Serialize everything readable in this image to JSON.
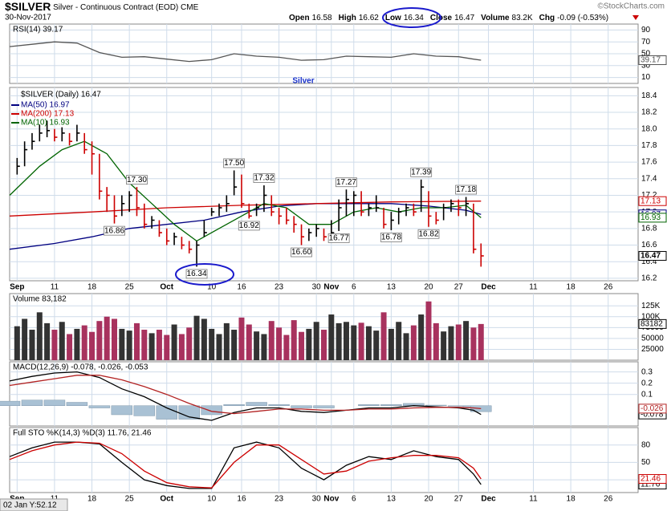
{
  "header": {
    "symbol": "$SILVER",
    "name": "Silver - Continuous Contract (EOD)",
    "exchange": "CME",
    "date": "30-Nov-2017",
    "quote": [
      {
        "label": "Open",
        "value": "16.58"
      },
      {
        "label": "High",
        "value": "16.62"
      },
      {
        "label": "Low",
        "value": "16.34"
      },
      {
        "label": "Close",
        "value": "16.47"
      },
      {
        "label": "Volume",
        "value": "83.2K"
      },
      {
        "label": "Chg",
        "value": "-0.09 (-0.53%)"
      }
    ],
    "credit": "©StockCharts.com",
    "title": "Silver",
    "footer": "02 Jan Y:52.12"
  },
  "chart_data": [
    {
      "type": "line",
      "label": "RSI(14) 39.17",
      "ylim": [
        0,
        100
      ],
      "yticks": [
        90,
        70,
        50,
        30,
        10
      ],
      "series": [
        {
          "color": "#555555",
          "x": [
            -1,
            2,
            5,
            8,
            11,
            14,
            17,
            20,
            23,
            26,
            29,
            32,
            35,
            38,
            41,
            44,
            47,
            50,
            53,
            56,
            59,
            61,
            62
          ],
          "values": [
            62,
            66,
            70,
            68,
            52,
            44,
            45,
            41,
            37,
            40,
            50,
            46,
            44,
            39,
            40,
            46,
            45,
            44,
            50,
            46,
            45,
            41,
            39.17
          ]
        }
      ]
    },
    {
      "type": "ohlc",
      "label": "$SILVER (Daily) 16.47",
      "xlim": [
        -1,
        83
      ],
      "xticks": [
        {
          "value": 0,
          "label": "Sep"
        },
        {
          "value": 5,
          "label": "11"
        },
        {
          "value": 10,
          "label": "18"
        },
        {
          "value": 15,
          "label": "25"
        },
        {
          "value": 20,
          "label": "Oct"
        },
        {
          "value": 26,
          "label": "10"
        },
        {
          "value": 30,
          "label": "16"
        },
        {
          "value": 35,
          "label": "23"
        },
        {
          "value": 40,
          "label": "30"
        },
        {
          "value": 42,
          "label": "Nov"
        },
        {
          "value": 45,
          "label": "6"
        },
        {
          "value": 50,
          "label": "13"
        },
        {
          "value": 55,
          "label": "20"
        },
        {
          "value": 59,
          "label": "27"
        },
        {
          "value": 63,
          "label": "Dec"
        },
        {
          "value": 69,
          "label": "11"
        },
        {
          "value": 74,
          "label": "18"
        },
        {
          "value": 79,
          "label": "26"
        }
      ],
      "ylim": [
        16.17,
        18.5
      ],
      "yticks": [
        18.4,
        18.2,
        {
          "value": 18,
          "label": "18.0"
        },
        17.8,
        17.6,
        17.4,
        17.2,
        {
          "value": 17,
          "label": "17.0"
        },
        16.8,
        16.6,
        16.4,
        16.2
      ],
      "up_color": "#000000",
      "down_color": "#cc0000",
      "close": [
        17.55,
        17.75,
        17.85,
        17.95,
        17.98,
        17.9,
        17.95,
        17.85,
        17.95,
        17.75,
        17.7,
        17.25,
        17.2,
        16.95,
        17.1,
        17.2,
        17.05,
        16.85,
        16.9,
        16.75,
        16.65,
        16.7,
        16.6,
        16.55,
        16.6,
        16.75,
        17.0,
        17.05,
        17.1,
        17.3,
        17.1,
        16.95,
        17.05,
        17.2,
        17.0,
        16.95,
        16.9,
        16.85,
        16.7,
        16.75,
        16.8,
        16.7,
        16.75,
        17.05,
        17.15,
        17.2,
        17.0,
        17.05,
        17.05,
        16.85,
        16.9,
        17.0,
        17.05,
        17.0,
        17.3,
        16.95,
        16.9,
        17.05,
        17.1,
        17.05,
        17.1,
        16.55,
        16.47
      ],
      "high": [
        17.65,
        17.85,
        17.95,
        18.05,
        18.1,
        18.0,
        18.02,
        17.95,
        18.05,
        17.95,
        17.85,
        17.7,
        17.3,
        17.2,
        17.2,
        17.25,
        17.3,
        17.1,
        16.95,
        16.9,
        16.8,
        16.75,
        16.7,
        16.65,
        16.65,
        16.9,
        17.05,
        17.1,
        17.2,
        17.5,
        17.45,
        17.1,
        17.1,
        17.32,
        17.2,
        17.05,
        17.05,
        16.95,
        16.85,
        16.8,
        16.85,
        16.8,
        16.9,
        17.15,
        17.27,
        17.25,
        17.25,
        17.1,
        17.2,
        17.05,
        17.0,
        17.05,
        17.1,
        17.1,
        17.39,
        17.25,
        17.0,
        17.1,
        17.15,
        17.15,
        17.18,
        17.1,
        16.62
      ],
      "low": [
        17.45,
        17.55,
        17.75,
        17.85,
        17.9,
        17.85,
        17.85,
        17.8,
        17.85,
        17.7,
        17.45,
        17.15,
        17.0,
        16.86,
        16.95,
        17.0,
        16.95,
        16.8,
        16.8,
        16.7,
        16.6,
        16.6,
        16.55,
        16.5,
        16.34,
        16.7,
        16.95,
        16.95,
        17.0,
        17.2,
        17.05,
        16.92,
        16.95,
        17.0,
        16.95,
        16.85,
        16.85,
        16.75,
        16.6,
        16.65,
        16.7,
        16.65,
        16.68,
        16.77,
        16.95,
        16.95,
        16.95,
        16.95,
        17.0,
        16.8,
        16.78,
        16.85,
        16.95,
        16.95,
        17.0,
        16.82,
        16.85,
        16.9,
        17.0,
        16.95,
        16.95,
        16.5,
        16.34
      ],
      "series": [
        {
          "name": "MA(50) 16.97",
          "color": "#000080",
          "x": [
            -1,
            5,
            10,
            15,
            20,
            25,
            30,
            35,
            40,
            45,
            50,
            55,
            60,
            62
          ],
          "values": [
            16.55,
            16.62,
            16.7,
            16.8,
            16.85,
            16.9,
            17.0,
            17.07,
            17.1,
            17.1,
            17.1,
            17.07,
            17.02,
            16.97
          ]
        },
        {
          "name": "MA(200) 17.13",
          "color": "#cc0000",
          "x": [
            -1,
            10,
            20,
            30,
            40,
            50,
            62
          ],
          "values": [
            16.95,
            17.0,
            17.05,
            17.08,
            17.1,
            17.12,
            17.13
          ]
        },
        {
          "name": "MA(10) 16.93",
          "color": "#006400",
          "x": [
            -1,
            3,
            6,
            9,
            12,
            15,
            18,
            21,
            24,
            27,
            30,
            33,
            36,
            39,
            42,
            45,
            48,
            51,
            54,
            57,
            60,
            62
          ],
          "values": [
            17.2,
            17.55,
            17.75,
            17.85,
            17.7,
            17.35,
            17.1,
            16.85,
            16.65,
            16.8,
            16.95,
            17.1,
            17.05,
            16.85,
            16.85,
            17.0,
            17.05,
            17.0,
            17.05,
            17.05,
            17.08,
            16.93
          ]
        }
      ],
      "annotations": [
        {
          "text": "16.86",
          "x": 13,
          "y": 16.86
        },
        {
          "text": "17.30",
          "x": 16,
          "y": 17.3
        },
        {
          "text": "16.34",
          "x": 24,
          "y": 16.34
        },
        {
          "text": "17.50",
          "x": 29,
          "y": 17.5
        },
        {
          "text": "16.92",
          "x": 31,
          "y": 16.92
        },
        {
          "text": "17.32",
          "x": 33,
          "y": 17.32
        },
        {
          "text": "16.60",
          "x": 38,
          "y": 16.6
        },
        {
          "text": "16.77",
          "x": 43,
          "y": 16.77
        },
        {
          "text": "17.27",
          "x": 44,
          "y": 17.27
        },
        {
          "text": "16.78",
          "x": 50,
          "y": 16.78
        },
        {
          "text": "17.39",
          "x": 54,
          "y": 17.39
        },
        {
          "text": "16.82",
          "x": 55,
          "y": 16.82
        },
        {
          "text": "17.18",
          "x": 60,
          "y": 17.18
        }
      ]
    },
    {
      "type": "bar",
      "label": "Volume 83,182",
      "ylim": [
        0,
        153000
      ],
      "yticks": [
        {
          "value": 125000,
          "label": "125K"
        },
        {
          "value": 100000,
          "label": "100K"
        },
        75000,
        50000,
        25000
      ],
      "up_color": "#333333",
      "down_color": "#a8325e",
      "values": [
        78000,
        95000,
        70000,
        110000,
        85000,
        70000,
        88000,
        60000,
        72000,
        80000,
        65000,
        90000,
        100000,
        95000,
        72000,
        68000,
        85000,
        70000,
        62000,
        70000,
        58000,
        82000,
        60000,
        75000,
        102000,
        95000,
        72000,
        60000,
        85000,
        70000,
        98000,
        82000,
        66000,
        60000,
        90000,
        75000,
        58000,
        92000,
        65000,
        72000,
        88000,
        70000,
        105000,
        85000,
        88000,
        80000,
        86000,
        78000,
        68000,
        110000,
        72000,
        88000,
        62000,
        80000,
        105000,
        135000,
        85000,
        66000,
        78000,
        82000,
        90000,
        75000,
        83182
      ]
    },
    {
      "type": "macd",
      "label": "MACD(12,26,9) -0.078, -0.026, -0.053",
      "ylim": [
        -0.18,
        0.39
      ],
      "yticks": [
        0.3,
        0.2,
        0.1
      ],
      "histogram": {
        "color": "#a9c1d4",
        "x": [
          -1,
          2,
          5,
          8,
          11,
          14,
          17,
          20,
          23,
          26,
          29,
          32,
          35,
          38,
          41,
          44,
          47,
          50,
          53,
          56,
          59,
          61,
          62
        ],
        "values": [
          0.04,
          0.05,
          0.05,
          0.03,
          -0.02,
          -0.08,
          -0.09,
          -0.12,
          -0.12,
          -0.08,
          0.01,
          0.03,
          0.01,
          -0.02,
          -0.02,
          0.0,
          0.01,
          0.01,
          0.02,
          0.005,
          -0.005,
          -0.02,
          -0.053
        ]
      },
      "series": [
        {
          "color": "#000000",
          "x": [
            -1,
            2,
            5,
            8,
            11,
            14,
            17,
            20,
            23,
            26,
            29,
            32,
            35,
            38,
            41,
            44,
            47,
            50,
            53,
            56,
            59,
            61,
            62
          ],
          "values": [
            0.22,
            0.26,
            0.29,
            0.3,
            0.25,
            0.15,
            0.08,
            -0.02,
            -0.1,
            -0.13,
            -0.06,
            -0.02,
            -0.02,
            -0.05,
            -0.06,
            -0.04,
            -0.02,
            -0.02,
            0.0,
            -0.01,
            -0.02,
            -0.04,
            -0.078
          ]
        },
        {
          "color": "#b22222",
          "x": [
            -1,
            2,
            5,
            8,
            11,
            14,
            17,
            20,
            23,
            26,
            29,
            32,
            35,
            38,
            41,
            44,
            47,
            50,
            53,
            56,
            59,
            61,
            62
          ],
          "values": [
            0.18,
            0.21,
            0.24,
            0.27,
            0.27,
            0.23,
            0.17,
            0.1,
            0.02,
            -0.05,
            -0.07,
            -0.05,
            -0.03,
            -0.03,
            -0.04,
            -0.04,
            -0.03,
            -0.03,
            -0.02,
            -0.015,
            -0.015,
            -0.02,
            -0.026
          ]
        }
      ]
    },
    {
      "type": "line",
      "label": "Full STO %K(14,3) %D(3) 11.76, 21.46",
      "ylim": [
        -2,
        110
      ],
      "yticks": [
        80,
        50,
        20
      ],
      "series": [
        {
          "color": "#000000",
          "x": [
            -1,
            2,
            5,
            8,
            11,
            14,
            17,
            20,
            23,
            26,
            29,
            32,
            35,
            38,
            41,
            44,
            47,
            50,
            53,
            56,
            59,
            61,
            62
          ],
          "values": [
            60,
            75,
            85,
            85,
            82,
            50,
            20,
            10,
            5,
            5,
            75,
            85,
            75,
            40,
            20,
            45,
            60,
            55,
            70,
            60,
            55,
            30,
            11.76
          ]
        },
        {
          "color": "#cc0000",
          "x": [
            -1,
            2,
            5,
            8,
            11,
            14,
            17,
            20,
            23,
            26,
            29,
            32,
            35,
            38,
            41,
            44,
            47,
            50,
            53,
            56,
            59,
            61,
            62
          ],
          "values": [
            55,
            70,
            80,
            85,
            83,
            65,
            35,
            15,
            8,
            6,
            50,
            80,
            80,
            55,
            30,
            35,
            52,
            58,
            62,
            62,
            58,
            40,
            21.46
          ]
        }
      ]
    }
  ]
}
